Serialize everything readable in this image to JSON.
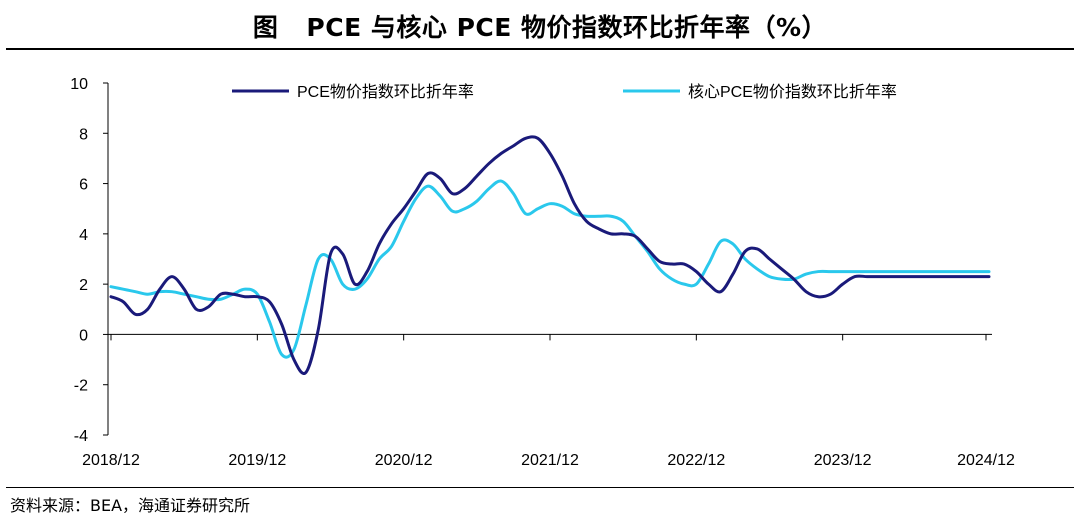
{
  "title": {
    "label": "图",
    "text": "PCE 与核心 PCE 物价指数环比折年率（%）"
  },
  "source": "资料来源：BEA，海通证券研究所",
  "colors": {
    "pce": "#1a1a7a",
    "core": "#2ac8ec",
    "axis": "#000000"
  },
  "chart_data": {
    "type": "line",
    "title": "PCE 与核心 PCE 物价指数环比折年率（%）",
    "xlabel": "",
    "ylabel": "",
    "ylim": [
      -4,
      10
    ],
    "yticks": [
      -4,
      -2,
      0,
      2,
      4,
      6,
      8,
      10
    ],
    "xtick_labels": [
      "2018/12",
      "2019/12",
      "2020/12",
      "2021/12",
      "2022/12",
      "2023/12",
      "2024/12"
    ],
    "grid": false,
    "legend": "top",
    "x": [
      "2018/12",
      "2019/01",
      "2019/02",
      "2019/03",
      "2019/04",
      "2019/05",
      "2019/06",
      "2019/07",
      "2019/08",
      "2019/09",
      "2019/10",
      "2019/11",
      "2019/12",
      "2020/01",
      "2020/02",
      "2020/03",
      "2020/04",
      "2020/05",
      "2020/06",
      "2020/07",
      "2020/08",
      "2020/09",
      "2020/10",
      "2020/11",
      "2020/12",
      "2021/01",
      "2021/02",
      "2021/03",
      "2021/04",
      "2021/05",
      "2021/06",
      "2021/07",
      "2021/08",
      "2021/09",
      "2021/10",
      "2021/11",
      "2021/12",
      "2022/01",
      "2022/02",
      "2022/03",
      "2022/04",
      "2022/05",
      "2022/06",
      "2022/07",
      "2022/08",
      "2022/09",
      "2022/10",
      "2022/11",
      "2022/12",
      "2023/01",
      "2023/02",
      "2023/03",
      "2023/04",
      "2023/05",
      "2023/06",
      "2023/07",
      "2023/08",
      "2023/09",
      "2023/10",
      "2023/11",
      "2023/12",
      "2024/01",
      "2024/02",
      "2024/03",
      "2024/04",
      "2024/05",
      "2024/06",
      "2024/07",
      "2024/08",
      "2024/09",
      "2024/10",
      "2024/11",
      "2024/12"
    ],
    "series": [
      {
        "name": "PCE物价指数环比折年率",
        "values": [
          1.5,
          1.3,
          0.8,
          1.0,
          1.8,
          2.3,
          1.8,
          1.0,
          1.1,
          1.6,
          1.6,
          1.5,
          1.5,
          1.3,
          0.4,
          -1.0,
          -1.5,
          0.2,
          3.2,
          3.2,
          2.0,
          2.5,
          3.6,
          4.4,
          5.0,
          5.7,
          6.4,
          6.2,
          5.6,
          5.8,
          6.3,
          6.8,
          7.2,
          7.5,
          7.8,
          7.8,
          7.2,
          6.3,
          5.2,
          4.5,
          4.2,
          4.0,
          4.0,
          3.9,
          3.4,
          2.9,
          2.8,
          2.8,
          2.5,
          2.0,
          1.7,
          2.4,
          3.3,
          3.4,
          3.0,
          2.6,
          2.2,
          1.7,
          1.5,
          1.6,
          2.0,
          2.3,
          2.3,
          2.3,
          2.3,
          2.3,
          2.3,
          2.3,
          2.3,
          2.3,
          2.3,
          2.3,
          2.3
        ]
      },
      {
        "name": "核心PCE物价指数环比折年率",
        "values": [
          1.9,
          1.8,
          1.7,
          1.6,
          1.7,
          1.7,
          1.6,
          1.5,
          1.4,
          1.4,
          1.6,
          1.8,
          1.6,
          0.5,
          -0.8,
          -0.6,
          1.2,
          3.0,
          3.0,
          2.0,
          1.8,
          2.2,
          3.0,
          3.5,
          4.5,
          5.4,
          5.9,
          5.5,
          4.9,
          5.0,
          5.3,
          5.8,
          6.1,
          5.6,
          4.8,
          5.0,
          5.2,
          5.1,
          4.8,
          4.7,
          4.7,
          4.7,
          4.5,
          3.9,
          3.3,
          2.6,
          2.2,
          2.0,
          2.0,
          2.8,
          3.7,
          3.6,
          3.0,
          2.6,
          2.3,
          2.2,
          2.2,
          2.4,
          2.5,
          2.5,
          2.5,
          2.5,
          2.5,
          2.5,
          2.5,
          2.5,
          2.5,
          2.5,
          2.5,
          2.5,
          2.5,
          2.5,
          2.5
        ]
      }
    ]
  }
}
